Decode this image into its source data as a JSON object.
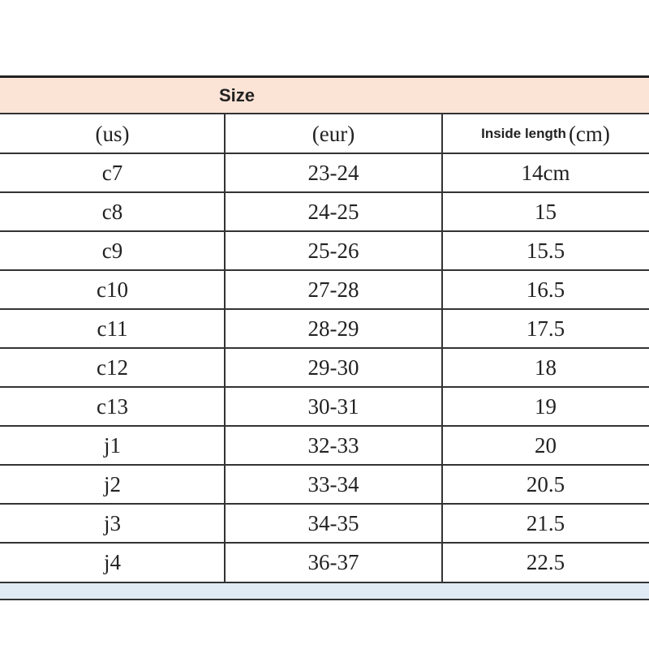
{
  "table": {
    "title": "Size",
    "headers": [
      "(us)",
      "(eur)"
    ],
    "length_header": {
      "label": "Inside length",
      "unit": "(cm)"
    },
    "rows": [
      [
        "c7",
        "23-24",
        "14cm"
      ],
      [
        "c8",
        "24-25",
        "15"
      ],
      [
        "c9",
        "25-26",
        "15.5"
      ],
      [
        "c10",
        "27-28",
        "16.5"
      ],
      [
        "c11",
        "28-29",
        "17.5"
      ],
      [
        "c12",
        "29-30",
        "18"
      ],
      [
        "c13",
        "30-31",
        "19"
      ],
      [
        "j1",
        "32-33",
        "20"
      ],
      [
        "j2",
        "33-34",
        "20.5"
      ],
      [
        "j3",
        "34-35",
        "21.5"
      ],
      [
        "j4",
        "36-37",
        "22.5"
      ]
    ]
  }
}
